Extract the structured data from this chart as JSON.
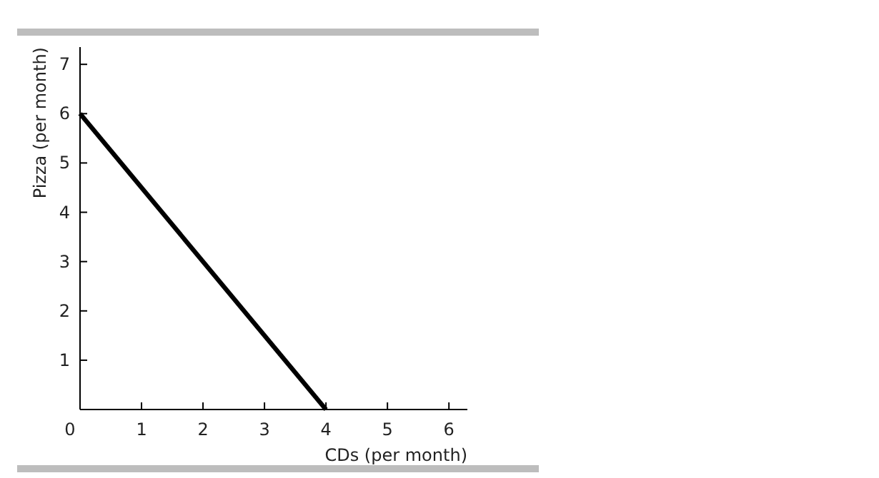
{
  "chart_data": {
    "type": "line",
    "xlabel": "CDs (per month)",
    "ylabel": "Pizza (per month)",
    "x": [
      0,
      4
    ],
    "series": [
      {
        "color": "#000000",
        "values": [
          6,
          0
        ]
      }
    ],
    "xlim": [
      0,
      6.3
    ],
    "xticks": [
      0,
      1,
      2,
      3,
      4,
      5,
      6
    ],
    "ylim": [
      0,
      7.35
    ],
    "yticks": [
      1,
      2,
      3,
      4,
      5,
      6,
      7
    ],
    "grid": false,
    "marker": "none",
    "line_style": "solid"
  }
}
